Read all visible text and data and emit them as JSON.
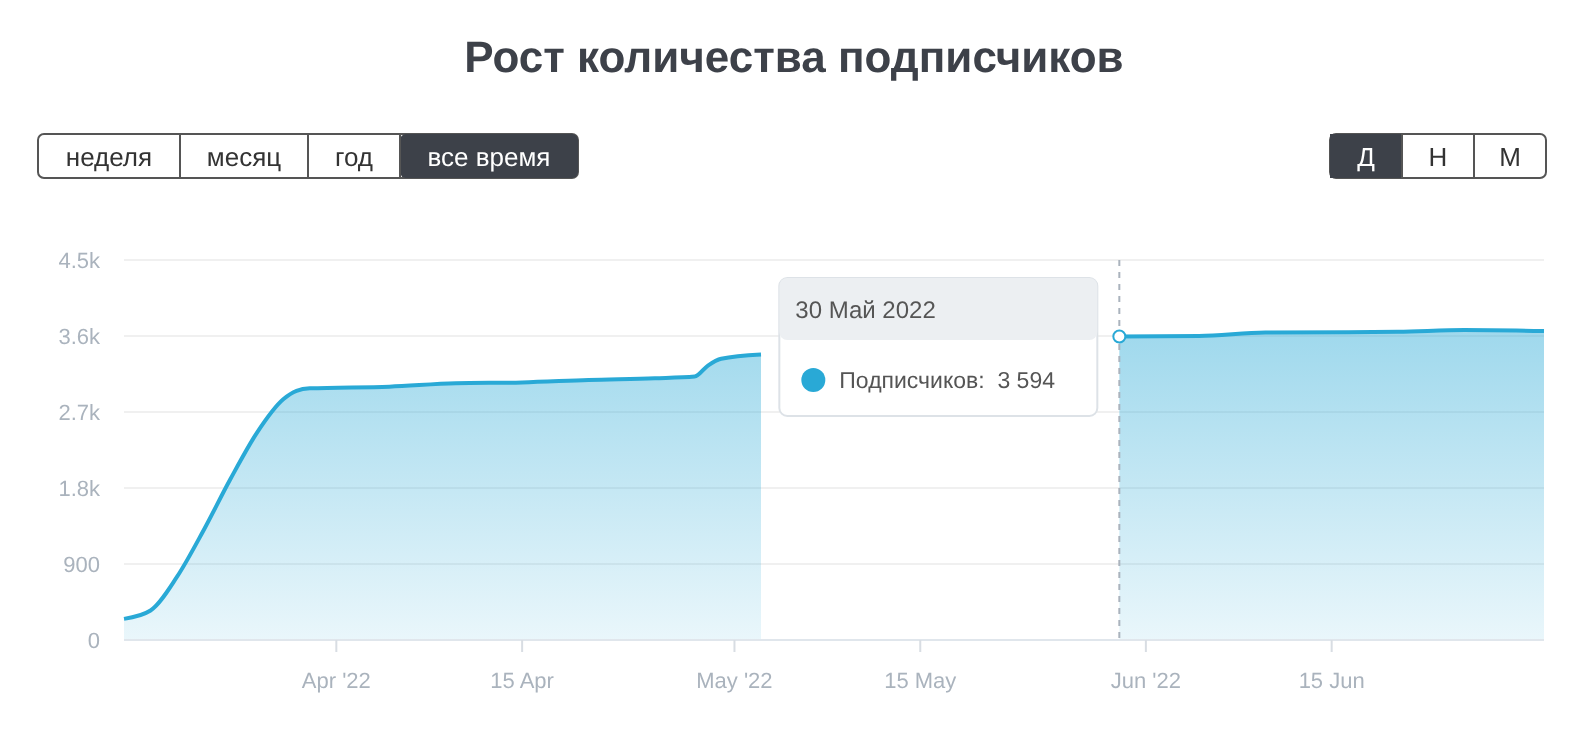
{
  "chart_data": {
    "type": "area",
    "title": "Рост количества подписчиков",
    "x": [
      "2022-03-16",
      "2022-03-18",
      "2022-03-20",
      "2022-03-22",
      "2022-03-24",
      "2022-03-26",
      "2022-03-28",
      "2022-03-29",
      "2022-03-30",
      "2022-04-05",
      "2022-04-10",
      "2022-04-15",
      "2022-04-20",
      "2022-04-25",
      "2022-04-28",
      "2022-04-29",
      "2022-04-30",
      "2022-05-03",
      "2022-05-07",
      "2022-05-15",
      "2022-05-25",
      "2022-05-30",
      "2022-06-05",
      "2022-06-10",
      "2022-06-20",
      "2022-06-25",
      "2022-07-01"
    ],
    "series": [
      {
        "color": "#29a9d6",
        "values": [
          250,
          350,
          750,
          1300,
          1900,
          2450,
          2850,
          2950,
          2980,
          3000,
          3040,
          3050,
          3080,
          3100,
          3120,
          3250,
          3330,
          3380,
          null,
          null,
          null,
          3594,
          3600,
          3640,
          3650,
          3670,
          3660
        ]
      }
    ],
    "xlim": [
      "2022-03-16",
      "2022-07-01"
    ],
    "xticks": [
      {
        "value": "2022-04-01",
        "label": "Apr '22"
      },
      {
        "value": "2022-04-15",
        "label": "15 Apr"
      },
      {
        "value": "2022-05-01",
        "label": "May '22"
      },
      {
        "value": "2022-05-15",
        "label": "15 May"
      },
      {
        "value": "2022-06-01",
        "label": "Jun '22"
      },
      {
        "value": "2022-06-15",
        "label": "15 Jun"
      }
    ],
    "ylim": [
      0,
      4500
    ],
    "yticks": [
      0,
      900,
      {
        "value": 1800,
        "label": "1.8k"
      },
      {
        "value": 2700,
        "label": "2.7k"
      },
      {
        "value": 3600,
        "label": "3.6k"
      },
      {
        "value": 4500,
        "label": "4.5k"
      }
    ],
    "grid": "y",
    "ref_lines": [
      {
        "axis": "x",
        "value": "2022-05-30",
        "color": "#aab3bd",
        "line_style": "dashed"
      }
    ],
    "annotations": [
      "неделя",
      "месяц",
      "год",
      "все время",
      "Д",
      "Н",
      "М",
      "30 Май 2022",
      "Подписчиков:  3 594"
    ]
  }
}
